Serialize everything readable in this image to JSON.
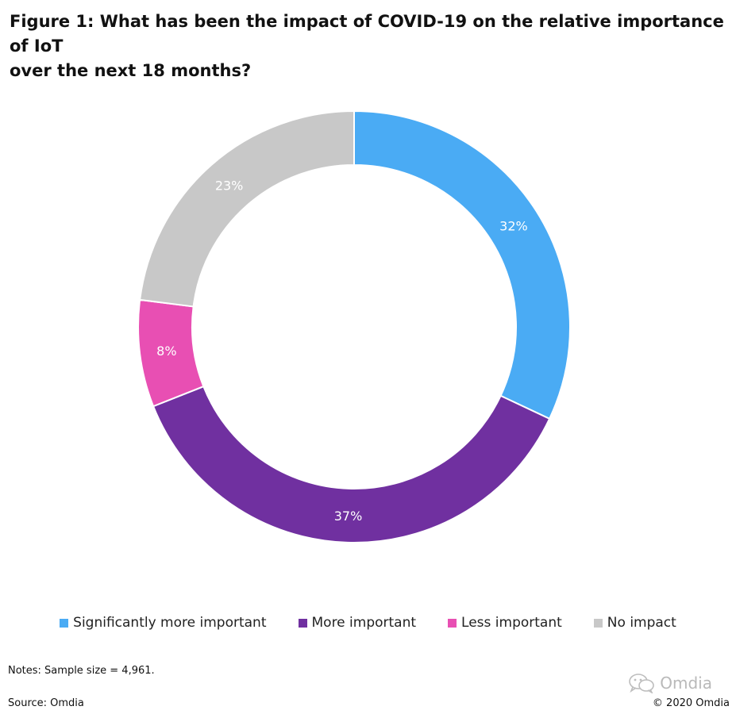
{
  "figure": {
    "title_line1": "Figure 1: What has been the impact of COVID-19 on the relative importance of IoT",
    "title_line2": "over the next 18 months?"
  },
  "chart_data": {
    "type": "pie",
    "variant": "donut",
    "title": "Figure 1: What has been the impact of COVID-19 on the relative importance of IoT over the next 18 months?",
    "unit": "%",
    "legend_position": "bottom",
    "slices": [
      {
        "label": "Significantly more important",
        "value": 32,
        "display": "32%",
        "color": "#4aabf4"
      },
      {
        "label": "More important",
        "value": 37,
        "display": "37%",
        "color": "#7030a0"
      },
      {
        "label": "Less important",
        "value": 8,
        "display": "8%",
        "color": "#e84fb3"
      },
      {
        "label": "No impact",
        "value": 23,
        "display": "23%",
        "color": "#c8c8c8"
      }
    ]
  },
  "footer": {
    "notes": "Notes: Sample size = 4,961.",
    "source": "Source: Omdia",
    "copyright": "© 2020 Omdia",
    "watermark": "Omdia",
    "watermark_icon": "wechat-icon"
  }
}
